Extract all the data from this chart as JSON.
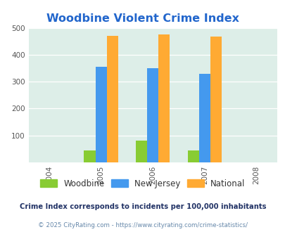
{
  "title": "Woodbine Violent Crime Index",
  "years": [
    2004,
    2005,
    2006,
    2007,
    2008
  ],
  "bar_years": [
    2005,
    2006,
    2007
  ],
  "woodbine": [
    45,
    80,
    45
  ],
  "new_jersey": [
    355,
    350,
    330
  ],
  "national": [
    470,
    475,
    468
  ],
  "woodbine_color": "#88cc33",
  "nj_color": "#4499ee",
  "national_color": "#ffaa33",
  "bg_color": "#ddeee8",
  "ylim": [
    0,
    500
  ],
  "yticks": [
    100,
    200,
    300,
    400,
    500
  ],
  "legend_labels": [
    "Woodbine",
    "New Jersey",
    "National"
  ],
  "footnote1": "Crime Index corresponds to incidents per 100,000 inhabitants",
  "footnote2": "© 2025 CityRating.com - https://www.cityrating.com/crime-statistics/",
  "title_color": "#2266cc",
  "footnote1_color": "#223366",
  "footnote2_color": "#6688aa",
  "bar_width": 0.22,
  "fig_bg": "#ffffff"
}
